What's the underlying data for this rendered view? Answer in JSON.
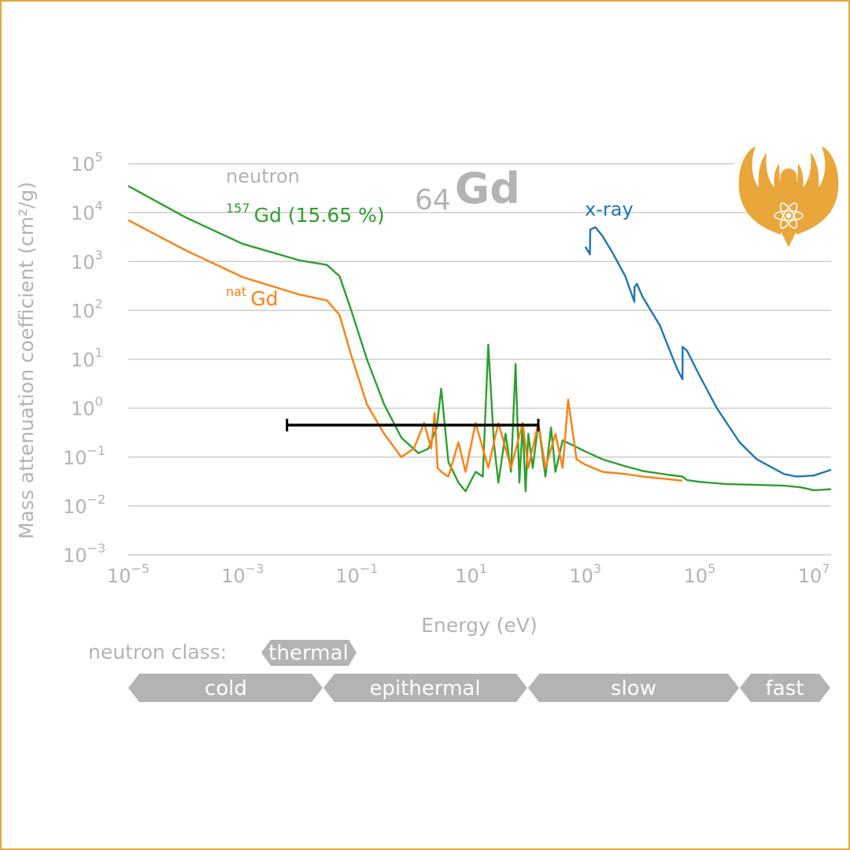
{
  "chart_data": {
    "type": "line",
    "title": "Gd",
    "element": {
      "atomic_number": "64",
      "symbol": "Gd"
    },
    "xlabel": "Energy (eV)",
    "ylabel": "Mass attenuation coefficient (cm²/g)",
    "x_scale": "log",
    "y_scale": "log",
    "xlim": [
      1e-05,
      20000000.0
    ],
    "ylim": [
      0.001,
      100000.0
    ],
    "x_ticks": [
      {
        "base": "10",
        "exp": "−5"
      },
      {
        "base": "10",
        "exp": "−3"
      },
      {
        "base": "10",
        "exp": "−1"
      },
      {
        "base": "10",
        "exp": "1"
      },
      {
        "base": "10",
        "exp": "3"
      },
      {
        "base": "10",
        "exp": "5"
      },
      {
        "base": "10",
        "exp": "7"
      }
    ],
    "y_ticks": [
      {
        "base": "10",
        "exp": "5"
      },
      {
        "base": "10",
        "exp": "4"
      },
      {
        "base": "10",
        "exp": "3"
      },
      {
        "base": "10",
        "exp": "2"
      },
      {
        "base": "10",
        "exp": "1"
      },
      {
        "base": "10",
        "exp": "0"
      },
      {
        "base": "10",
        "exp": "−1"
      },
      {
        "base": "10",
        "exp": "−2"
      },
      {
        "base": "10",
        "exp": "−3"
      }
    ],
    "grid": "horizontal",
    "annotations": {
      "neutron": "neutron",
      "gd157_sup": "157",
      "gd157_text": "Gd (15.65 %)",
      "natgd_sup": "nat",
      "natgd_text": "Gd",
      "xray": "x-ray"
    },
    "series": [
      {
        "key": "gd157",
        "color": "#2ca02c",
        "x": [
          1e-05,
          0.0001,
          0.001,
          0.01,
          0.03,
          0.05,
          0.08,
          0.15,
          0.3,
          0.6,
          1.2,
          1.8,
          2.5,
          3.0,
          4.0,
          6.0,
          8.0,
          12,
          16,
          20,
          25,
          30,
          40,
          50,
          60,
          70,
          80,
          90,
          100,
          120,
          150,
          200,
          250,
          300,
          400,
          700,
          1000,
          2000,
          5000,
          10000,
          30000,
          50000,
          60000,
          100000,
          300000,
          1000000,
          3000000,
          6000000,
          10000000.0,
          20000000.0
        ],
        "y": [
          35000,
          8000,
          2300,
          1050,
          850,
          500,
          100,
          10,
          1.2,
          0.25,
          0.12,
          0.15,
          0.4,
          2.5,
          0.08,
          0.03,
          0.02,
          0.05,
          0.04,
          20,
          0.2,
          0.03,
          0.3,
          0.05,
          8,
          0.03,
          0.5,
          0.02,
          0.3,
          0.06,
          0.5,
          0.04,
          0.4,
          0.05,
          0.22,
          0.16,
          0.13,
          0.09,
          0.065,
          0.052,
          0.043,
          0.04,
          0.034,
          0.031,
          0.028,
          0.027,
          0.026,
          0.024,
          0.021,
          0.022
        ]
      },
      {
        "key": "natgd",
        "color": "#ff7f0e",
        "x": [
          1e-05,
          0.0001,
          0.001,
          0.01,
          0.03,
          0.05,
          0.08,
          0.15,
          0.3,
          0.6,
          1.0,
          1.5,
          2.0,
          2.3,
          2.6,
          3.0,
          4.0,
          6.0,
          8.0,
          12,
          20,
          30,
          50,
          80,
          100,
          150,
          200,
          300,
          400,
          500,
          700,
          1000,
          2000,
          5000,
          10000,
          30000,
          50000
        ],
        "y": [
          7000,
          1700,
          480,
          210,
          160,
          80,
          12,
          1.2,
          0.3,
          0.1,
          0.15,
          0.5,
          0.15,
          0.8,
          0.06,
          0.05,
          0.04,
          0.2,
          0.05,
          0.5,
          0.06,
          0.5,
          0.06,
          0.5,
          0.06,
          0.5,
          0.06,
          0.3,
          0.06,
          1.5,
          0.09,
          0.07,
          0.05,
          0.045,
          0.04,
          0.035,
          0.033
        ]
      },
      {
        "key": "xray",
        "color": "#1f77b4",
        "x": [
          1000,
          1200,
          1220,
          1500,
          2000,
          3000,
          5000,
          7200,
          7250,
          8000,
          10000,
          20000,
          40000,
          50200,
          50300,
          60000,
          100000,
          200000,
          500000,
          1000000,
          3000000,
          5000000,
          10000000.0,
          20000000.0
        ],
        "y": [
          2000,
          1400,
          4500,
          5000,
          3300,
          1500,
          500,
          150,
          300,
          350,
          190,
          50,
          6.5,
          3.9,
          18,
          15,
          4.6,
          1.0,
          0.2,
          0.09,
          0.045,
          0.04,
          0.042,
          0.055
        ]
      }
    ],
    "resolution_bar": {
      "x": [
        0.006,
        150
      ],
      "y": 0.45
    },
    "neutron_classes": {
      "label": "neutron class:",
      "thermal": "thermal",
      "classes": [
        "cold",
        "epithermal",
        "slow",
        "fast"
      ]
    }
  }
}
